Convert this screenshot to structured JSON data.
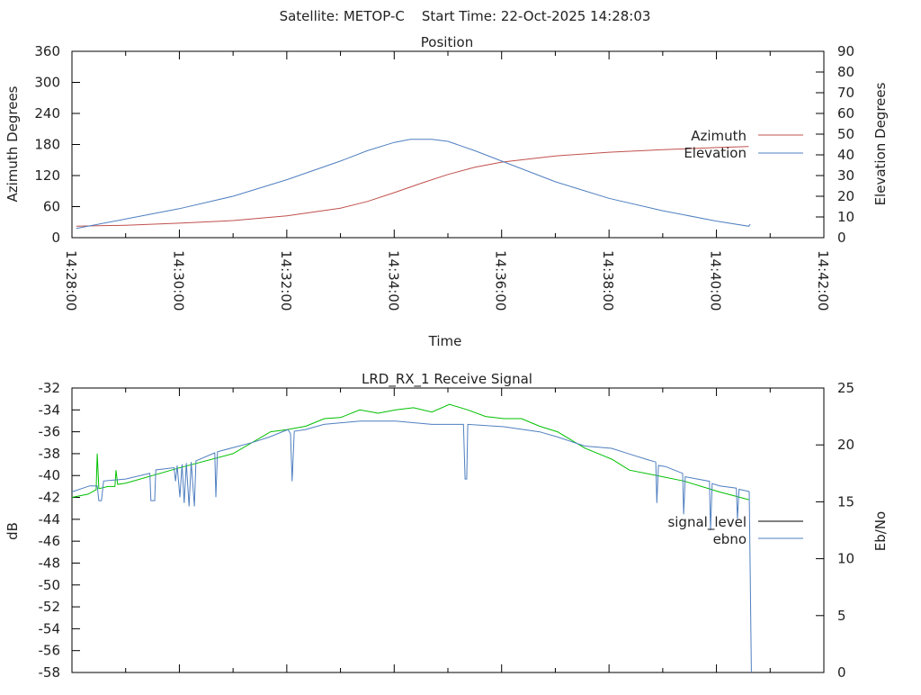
{
  "header": {
    "title": "Satellite: METOP-C    Start Time: 22-Oct-2025 14:28:03"
  },
  "colors": {
    "azimuth": "#c0504d",
    "elevation": "#4f7fc0",
    "ebno": "#4f7fc0",
    "signal": "#00c000",
    "legend_signal": "#000000"
  },
  "chart_data": [
    {
      "type": "line",
      "title": "Position",
      "xlabel": "Time",
      "ylabel": "Azimuth Degrees",
      "y2label": "Elevation Degrees",
      "x_unit": "minutes after 14:28:00",
      "xlim": [
        0,
        14
      ],
      "ylim": [
        0,
        360
      ],
      "y2lim": [
        0,
        90
      ],
      "x_ticks": [
        "14:28:00",
        "14:30:00",
        "14:32:00",
        "14:34:00",
        "14:36:00",
        "14:38:00",
        "14:40:00",
        "14:42:00"
      ],
      "y_ticks": [
        "0",
        "60",
        "120",
        "180",
        "240",
        "300",
        "360"
      ],
      "y2_ticks": [
        "0",
        "10",
        "20",
        "30",
        "40",
        "50",
        "60",
        "70",
        "80",
        "90"
      ],
      "legend_position": "right",
      "series": [
        {
          "name": "Azimuth",
          "axis": "y",
          "points": [
            [
              0.08,
              22
            ],
            [
              1,
              24
            ],
            [
              2,
              28
            ],
            [
              3,
              33
            ],
            [
              4,
              42
            ],
            [
              5,
              57
            ],
            [
              5.5,
              70
            ],
            [
              6,
              87
            ],
            [
              6.5,
              105
            ],
            [
              7,
              122
            ],
            [
              7.5,
              136
            ],
            [
              8,
              146
            ],
            [
              9,
              158
            ],
            [
              10,
              165
            ],
            [
              11,
              170
            ],
            [
              12,
              174
            ],
            [
              12.6,
              176
            ]
          ]
        },
        {
          "name": "Elevation",
          "axis": "y2",
          "points": [
            [
              0.08,
              4.5
            ],
            [
              1,
              9
            ],
            [
              2,
              14
            ],
            [
              3,
              20
            ],
            [
              4,
              28
            ],
            [
              5,
              37
            ],
            [
              5.5,
              42
            ],
            [
              6,
              46
            ],
            [
              6.3,
              47.5
            ],
            [
              6.7,
              47.5
            ],
            [
              7,
              46.5
            ],
            [
              7.5,
              42
            ],
            [
              8,
              37
            ],
            [
              9,
              27
            ],
            [
              10,
              19
            ],
            [
              11,
              13
            ],
            [
              12,
              8
            ],
            [
              12.6,
              5.5
            ],
            [
              12.63,
              6.5
            ]
          ]
        }
      ]
    },
    {
      "type": "line",
      "title": "LRD_RX_1 Receive Signal",
      "ylabel": "dB",
      "y2label": "Eb/No",
      "x_unit": "minutes after 14:28:00",
      "xlim": [
        0,
        14
      ],
      "ylim": [
        -58,
        -32
      ],
      "y2lim": [
        0,
        25
      ],
      "y_ticks": [
        "-58",
        "-56",
        "-54",
        "-52",
        "-50",
        "-48",
        "-46",
        "-44",
        "-42",
        "-40",
        "-38",
        "-36",
        "-34",
        "-32"
      ],
      "y2_ticks": [
        "0",
        "5",
        "10",
        "15",
        "20",
        "25"
      ],
      "legend_position": "right",
      "series": [
        {
          "name": "signal_level",
          "axis": "y",
          "points": [
            [
              0,
              -42
            ],
            [
              0.3,
              -41.7
            ],
            [
              0.45,
              -41.3
            ],
            [
              0.47,
              -38
            ],
            [
              0.5,
              -41.2
            ],
            [
              0.67,
              -41
            ],
            [
              0.8,
              -41
            ],
            [
              0.82,
              -39.5
            ],
            [
              0.85,
              -40.8
            ],
            [
              1.0,
              -40.7
            ],
            [
              2.0,
              -39.3
            ],
            [
              3.0,
              -38
            ],
            [
              3.7,
              -36
            ],
            [
              4.0,
              -35.8
            ],
            [
              4.35,
              -35.5
            ],
            [
              4.7,
              -34.8
            ],
            [
              5.0,
              -34.7
            ],
            [
              5.36,
              -34
            ],
            [
              5.7,
              -34.3
            ],
            [
              6.03,
              -34
            ],
            [
              6.36,
              -33.8
            ],
            [
              6.7,
              -34.2
            ],
            [
              7.03,
              -33.5
            ],
            [
              7.37,
              -34
            ],
            [
              7.7,
              -34.6
            ],
            [
              8.04,
              -34.8
            ],
            [
              8.37,
              -34.8
            ],
            [
              8.71,
              -35.5
            ],
            [
              9.04,
              -36
            ],
            [
              9.55,
              -37.5
            ],
            [
              10.05,
              -38.5
            ],
            [
              10.38,
              -39.5
            ],
            [
              10.89,
              -40
            ],
            [
              11.39,
              -40.5
            ],
            [
              12.06,
              -41.5
            ],
            [
              12.6,
              -42.2
            ]
          ]
        },
        {
          "name": "ebno",
          "axis": "y2",
          "points": [
            [
              0,
              15.87
            ],
            [
              0.33,
              16.4
            ],
            [
              0.47,
              16.4
            ],
            [
              0.5,
              15.1
            ],
            [
              0.55,
              15.1
            ],
            [
              0.59,
              16.83
            ],
            [
              1.0,
              17.0
            ],
            [
              1.45,
              17.5
            ],
            [
              1.47,
              15.1
            ],
            [
              1.54,
              15.1
            ],
            [
              1.56,
              17.8
            ],
            [
              1.9,
              18.0
            ],
            [
              1.93,
              16.8
            ],
            [
              1.96,
              18.2
            ],
            [
              2.01,
              15.4
            ],
            [
              2.05,
              18.3
            ],
            [
              2.09,
              14.9
            ],
            [
              2.13,
              18.4
            ],
            [
              2.18,
              14.6
            ],
            [
              2.22,
              18.5
            ],
            [
              2.28,
              14.6
            ],
            [
              2.31,
              18.6
            ],
            [
              2.66,
              19.3
            ],
            [
              2.68,
              15.4
            ],
            [
              2.71,
              19.4
            ],
            [
              3.35,
              20.2
            ],
            [
              3.68,
              20.7
            ],
            [
              4.02,
              21.35
            ],
            [
              4.07,
              21.0
            ],
            [
              4.1,
              16.8
            ],
            [
              4.14,
              21.2
            ],
            [
              4.35,
              21.35
            ],
            [
              4.69,
              21.8
            ],
            [
              5.36,
              22.1
            ],
            [
              6.03,
              22.1
            ],
            [
              6.7,
              21.8
            ],
            [
              7.29,
              21.8
            ],
            [
              7.32,
              17.0
            ],
            [
              7.35,
              17.0
            ],
            [
              7.37,
              21.8
            ],
            [
              8.04,
              21.6
            ],
            [
              8.71,
              21.15
            ],
            [
              9.04,
              20.7
            ],
            [
              9.55,
              19.9
            ],
            [
              10.05,
              19.7
            ],
            [
              10.38,
              19.2
            ],
            [
              10.72,
              18.7
            ],
            [
              10.87,
              18.5
            ],
            [
              10.89,
              14.9
            ],
            [
              10.92,
              18.2
            ],
            [
              11.05,
              18.1
            ],
            [
              11.37,
              17.5
            ],
            [
              11.39,
              13.9
            ],
            [
              11.42,
              17.2
            ],
            [
              11.87,
              16.8
            ],
            [
              11.89,
              12.5
            ],
            [
              11.92,
              16.6
            ],
            [
              12.06,
              16.4
            ],
            [
              12.37,
              16.2
            ],
            [
              12.39,
              13.5
            ],
            [
              12.42,
              16.1
            ],
            [
              12.61,
              15.9
            ],
            [
              12.63,
              8.2
            ],
            [
              12.65,
              0
            ]
          ]
        }
      ]
    }
  ]
}
